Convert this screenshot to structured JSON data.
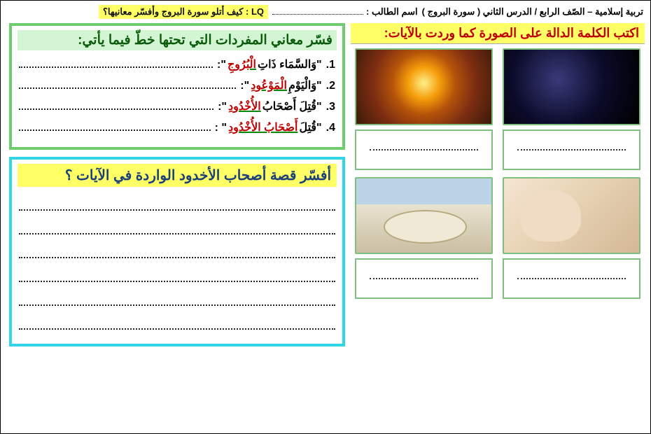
{
  "header": {
    "subject": "تربية إسلامية – الصّف الرابع  / الدرس الثاني ( سورة البروج )",
    "student_label": "اسم الطالب :",
    "lq": "LQ : كيف أتلو سورة البروج وأفسّر معانيها؟"
  },
  "right_panel": {
    "title": "اكتب الكلمة الدالة على الصورة كما وردت بالآيات:",
    "images": [
      {
        "name": "galaxy-image",
        "class": "img-galaxy"
      },
      {
        "name": "explosion-image",
        "class": "img-explosion"
      },
      {
        "name": "witness-image",
        "class": "img-witness"
      },
      {
        "name": "crater-image",
        "class": "img-crater"
      }
    ]
  },
  "vocab_panel": {
    "title": "فسّر معاني المفردات التي تحتها خطّ فيما يأتي:",
    "bg": "#d4f5d4",
    "border": "#6ecc6e",
    "items": [
      {
        "num": "1.",
        "pre": "\"وَالسَّمَاء ذَاتِ ",
        "kw": "الْبُرُوجِ",
        "post": "\":"
      },
      {
        "num": "2.",
        "pre": "\"وَالْيَوْمِ ",
        "kw": "الْمَوْعُودِ",
        "post": "\":"
      },
      {
        "num": "3.",
        "pre": "\"قُتِلَ أَصْحَابُ ",
        "kw": "الأُخْدُودِ",
        "post": "\":"
      },
      {
        "num": "4.",
        "pre": "\"قُتِلَ ",
        "kw": "أَصْحَابُ الأُخْدُودِ",
        "post": "\" :"
      }
    ]
  },
  "story_panel": {
    "title": "أفسّر قصة أصحاب الأخدود الواردة في الآيات ؟",
    "border": "#33d6e6",
    "lines": 6
  },
  "colors": {
    "highlight_yellow": "#ffff66",
    "title_red": "#c00000",
    "title_blue": "#1a3f7a",
    "title_green": "#0a5c0a"
  }
}
